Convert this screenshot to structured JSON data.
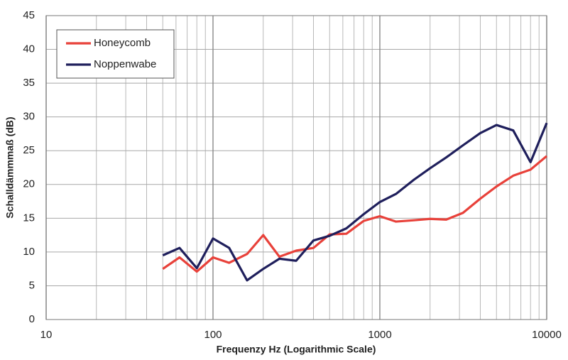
{
  "chart_data": {
    "type": "line",
    "x_label": "Frequenzy Hz (Logarithmic Scale)",
    "y_label": "Schalldämmmaß (dB)",
    "x": [
      50,
      63,
      80,
      100,
      125,
      160,
      200,
      250,
      315,
      400,
      500,
      630,
      800,
      1000,
      1250,
      1600,
      2000,
      2500,
      3150,
      4000,
      5000,
      6300,
      8000,
      10000
    ],
    "series": [
      {
        "name": "Honeycomb",
        "color": "#e8413a",
        "values": [
          7.5,
          9.2,
          7.1,
          9.2,
          8.4,
          9.7,
          12.5,
          9.3,
          10.2,
          10.6,
          12.6,
          12.7,
          14.6,
          15.3,
          14.5,
          14.7,
          14.9,
          14.8,
          15.8,
          17.9,
          19.7,
          21.3,
          22.2,
          24.2
        ]
      },
      {
        "name": "Noppenwabe",
        "color": "#1f1f5c",
        "values": [
          9.5,
          10.6,
          7.6,
          12.0,
          10.6,
          5.8,
          7.5,
          9.0,
          8.7,
          11.7,
          12.4,
          13.5,
          15.6,
          17.4,
          18.6,
          20.7,
          22.4,
          24.0,
          25.8,
          27.6,
          28.8,
          28.0,
          23.3,
          29.1
        ]
      }
    ],
    "log_x": true,
    "xlim": [
      10,
      10000
    ],
    "xticks": [
      10,
      100,
      1000,
      10000
    ],
    "x_minor_gridlines": [
      20,
      30,
      40,
      50,
      60,
      70,
      80,
      90,
      200,
      300,
      400,
      500,
      600,
      700,
      800,
      900,
      2000,
      3000,
      4000,
      5000,
      6000,
      7000,
      8000,
      9000
    ],
    "ylim": [
      0,
      45
    ],
    "yticks": [
      0,
      5,
      10,
      15,
      20,
      25,
      30,
      35,
      40,
      45
    ],
    "grid": true,
    "legend": "top-left"
  }
}
